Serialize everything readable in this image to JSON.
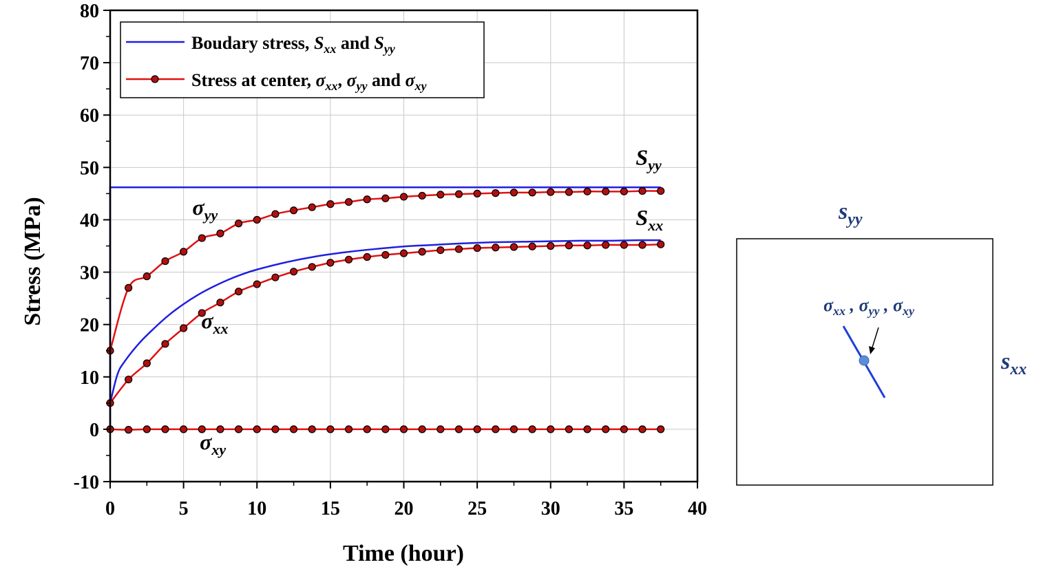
{
  "chart_data": {
    "type": "line",
    "xlabel": "Time (hour)",
    "ylabel": "Stress (MPa)",
    "xlim": [
      0,
      40
    ],
    "ylim": [
      -10,
      80
    ],
    "xticks": [
      0,
      5,
      10,
      15,
      20,
      25,
      30,
      35,
      40
    ],
    "yticks": [
      -10,
      0,
      10,
      20,
      30,
      40,
      50,
      60,
      70,
      80
    ],
    "grid": true,
    "legend_position": "top-left",
    "legend": [
      {
        "text": "Boudary stress, ",
        "sym1": "S",
        "sub1": "xx",
        "mid": " and ",
        "sym2": "S",
        "sub2": "yy",
        "tail": ""
      },
      {
        "text": "Stress at center, ",
        "sym1": "σ",
        "sub1": "xx",
        "mid": ", ",
        "sym2": "σ",
        "sub2": "yy",
        "tail": " and ",
        "sym3": "σ",
        "sub3": "xy"
      }
    ],
    "series": [
      {
        "name": "S_yy",
        "color": "#1f1fe0",
        "marker": "none",
        "x": [
          0,
          0,
          0.5,
          5,
          10,
          20,
          30,
          37.5
        ],
        "y": [
          0,
          46.2,
          46.2,
          46.2,
          46.2,
          46.2,
          46.2,
          46.2
        ]
      },
      {
        "name": "S_xx",
        "color": "#1f1fe0",
        "marker": "none",
        "x": [
          0,
          0.5,
          1,
          2,
          3,
          4,
          5,
          6,
          7,
          8,
          9,
          10,
          12,
          14,
          16,
          18,
          20,
          22,
          24,
          26,
          28,
          30,
          32,
          34,
          36,
          37.5
        ],
        "y": [
          5,
          10.5,
          13,
          16.5,
          19.3,
          21.8,
          23.9,
          25.7,
          27.2,
          28.5,
          29.6,
          30.5,
          31.9,
          33.0,
          33.8,
          34.4,
          34.9,
          35.2,
          35.5,
          35.7,
          35.8,
          35.9,
          36.0,
          36.0,
          36.1,
          36.1
        ]
      },
      {
        "name": "σ_yy",
        "color": "#e01010",
        "marker": "circle",
        "x": [
          0,
          1.25,
          2.5,
          3.75,
          5,
          6.25,
          7.5,
          8.75,
          10,
          11.25,
          12.5,
          13.75,
          15,
          16.25,
          17.5,
          18.75,
          20,
          21.25,
          22.5,
          23.75,
          25,
          26.25,
          27.5,
          28.75,
          30,
          31.25,
          32.5,
          33.75,
          35,
          36.25,
          37.5
        ],
        "y": [
          15,
          27,
          29.2,
          32.1,
          33.9,
          36.5,
          37.4,
          39.3,
          40.0,
          41.1,
          41.8,
          42.4,
          43.0,
          43.4,
          43.9,
          44.1,
          44.4,
          44.6,
          44.8,
          44.9,
          45.0,
          45.1,
          45.2,
          45.2,
          45.3,
          45.3,
          45.4,
          45.4,
          45.4,
          45.5,
          45.5
        ]
      },
      {
        "name": "σ_xx",
        "color": "#e01010",
        "marker": "circle",
        "x": [
          0,
          1.25,
          2.5,
          3.75,
          5,
          6.25,
          7.5,
          8.75,
          10,
          11.25,
          12.5,
          13.75,
          15,
          16.25,
          17.5,
          18.75,
          20,
          21.25,
          22.5,
          23.75,
          25,
          26.25,
          27.5,
          28.75,
          30,
          31.25,
          32.5,
          33.75,
          35,
          36.25,
          37.5
        ],
        "y": [
          5,
          9.5,
          12.6,
          16.3,
          19.3,
          22.2,
          24.2,
          26.3,
          27.7,
          29.0,
          30.1,
          31.0,
          31.8,
          32.4,
          32.9,
          33.3,
          33.6,
          33.9,
          34.2,
          34.4,
          34.6,
          34.7,
          34.8,
          34.9,
          35.0,
          35.1,
          35.1,
          35.2,
          35.2,
          35.2,
          35.3
        ]
      },
      {
        "name": "σ_xy",
        "color": "#e01010",
        "marker": "circle",
        "x": [
          0,
          1.25,
          2.5,
          3.75,
          5,
          6.25,
          7.5,
          8.75,
          10,
          11.25,
          12.5,
          13.75,
          15,
          16.25,
          17.5,
          18.75,
          20,
          21.25,
          22.5,
          23.75,
          25,
          26.25,
          27.5,
          28.75,
          30,
          31.25,
          32.5,
          33.75,
          35,
          36.25,
          37.5
        ],
        "y": [
          0,
          -0.1,
          0,
          0,
          0,
          0,
          0,
          0,
          0,
          0,
          0,
          0,
          0,
          0,
          0,
          0,
          0,
          0,
          0,
          0,
          0,
          0,
          0,
          0,
          0,
          0,
          0,
          0,
          0,
          0,
          0
        ]
      }
    ],
    "annotations": [
      {
        "sym": "S",
        "sub": "yy",
        "x": 35.8,
        "y": 50.5
      },
      {
        "sym": "S",
        "sub": "xx",
        "x": 35.8,
        "y": 39.0
      },
      {
        "sym": "σ",
        "sub": "yy",
        "x": 5.6,
        "y": 41.0
      },
      {
        "sym": "σ",
        "sub": "xx",
        "x": 6.2,
        "y": 19.3
      },
      {
        "sym": "σ",
        "sub": "xy",
        "x": 6.1,
        "y": -3.8
      }
    ]
  },
  "inset": {
    "top_label_sym": "s",
    "top_label_sub": "yy",
    "right_label_sym": "s",
    "right_label_sub": "xx",
    "center_label": [
      {
        "sym": "σ",
        "sub": "xx",
        "sep": " , "
      },
      {
        "sym": "σ",
        "sub": "yy",
        "sep": " ,  "
      },
      {
        "sym": "σ",
        "sub": "xy",
        "sep": ""
      }
    ],
    "line_color": "#1e3fd8",
    "point_color": "#5b8ed6"
  }
}
